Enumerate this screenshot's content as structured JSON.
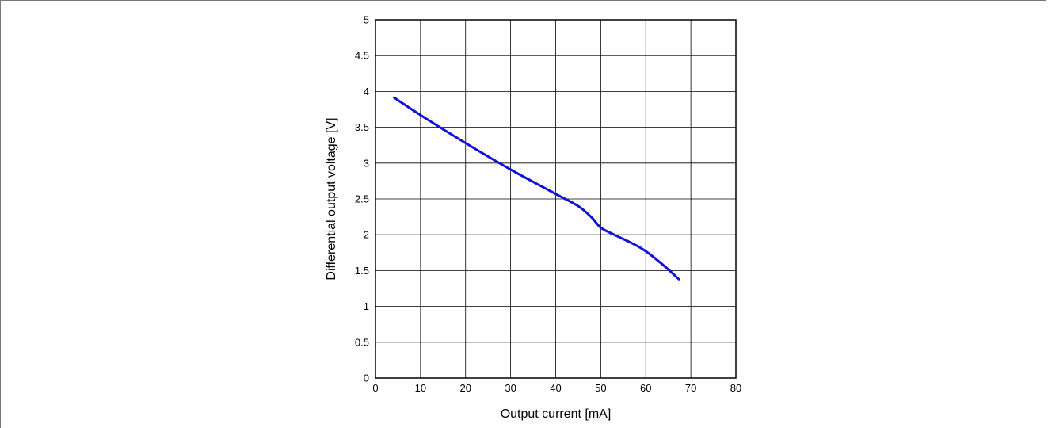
{
  "chart_data": {
    "type": "line",
    "title": "",
    "xlabel": "Output current [mA]",
    "ylabel": "Differential output voltage [V]",
    "xlim": [
      0,
      80
    ],
    "ylim": [
      0,
      5
    ],
    "x_ticks": [
      "0",
      "10",
      "20",
      "30",
      "40",
      "50",
      "60",
      "70",
      "80"
    ],
    "y_ticks": [
      "0",
      "0.5",
      "1",
      "1.5",
      "2",
      "2.5",
      "3",
      "3.5",
      "4",
      "4.5",
      "5"
    ],
    "grid": true,
    "series": [
      {
        "color": "#1010d8",
        "x": [
          4,
          10,
          20,
          30,
          40,
          45,
          48,
          50,
          53,
          57,
          60,
          64,
          67.5
        ],
        "y": [
          3.92,
          3.67,
          3.28,
          2.91,
          2.57,
          2.4,
          2.24,
          2.1,
          2.0,
          1.88,
          1.77,
          1.57,
          1.37
        ]
      }
    ]
  }
}
